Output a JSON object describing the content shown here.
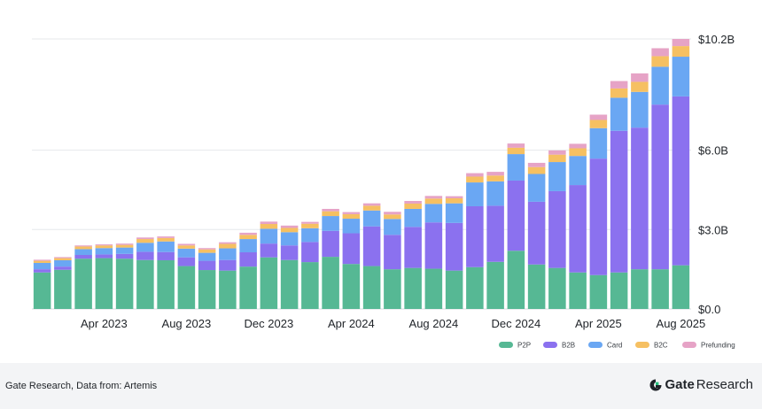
{
  "chart_data": {
    "type": "bar",
    "stacked": true,
    "categories": [
      "Jan 2023",
      "Feb 2023",
      "Mar 2023",
      "Apr 2023",
      "May 2023",
      "Jun 2023",
      "Jul 2023",
      "Aug 2023",
      "Sep 2023",
      "Oct 2023",
      "Nov 2023",
      "Dec 2023",
      "Jan 2024",
      "Feb 2024",
      "Mar 2024",
      "Apr 2024",
      "May 2024",
      "Jun 2024",
      "Jul 2024",
      "Aug 2024",
      "Sep 2024",
      "Oct 2024",
      "Nov 2024",
      "Dec 2024",
      "Jan 2025",
      "Feb 2025",
      "Mar 2025",
      "Apr 2025",
      "May 2025",
      "Jun 2025",
      "Jul 2025",
      "Aug 2025"
    ],
    "x_tick_labels": [
      {
        "index": 3,
        "label": "Apr 2023"
      },
      {
        "index": 7,
        "label": "Aug 2023"
      },
      {
        "index": 11,
        "label": "Dec 2023"
      },
      {
        "index": 15,
        "label": "Apr 2024"
      },
      {
        "index": 19,
        "label": "Aug 2024"
      },
      {
        "index": 23,
        "label": "Dec 2024"
      },
      {
        "index": 27,
        "label": "Apr 2025"
      },
      {
        "index": 31,
        "label": "Aug 2025"
      }
    ],
    "y_ticks": [
      {
        "value": 0,
        "label": "$0.0"
      },
      {
        "value": 3.0,
        "label": "$3.0B"
      },
      {
        "value": 6.0,
        "label": "$6.0B"
      },
      {
        "value": 10.2,
        "label": "$10.2B"
      }
    ],
    "y_axis_position": "right",
    "ylim": [
      0,
      10.2
    ],
    "grid": "horizontal",
    "legend_position": "bottom-right",
    "series": [
      {
        "name": "P2P",
        "color": "#56b894",
        "values": [
          1.38,
          1.48,
          1.9,
          1.92,
          1.9,
          1.85,
          1.84,
          1.62,
          1.47,
          1.45,
          1.6,
          1.95,
          1.85,
          1.77,
          1.97,
          1.7,
          1.62,
          1.5,
          1.55,
          1.52,
          1.45,
          1.58,
          1.78,
          2.2,
          1.68,
          1.55,
          1.38,
          1.28,
          1.38,
          1.5,
          1.5,
          1.65
        ]
      },
      {
        "name": "B2B",
        "color": "#8b71ef",
        "values": [
          0.12,
          0.12,
          0.14,
          0.14,
          0.18,
          0.31,
          0.31,
          0.33,
          0.35,
          0.4,
          0.54,
          0.52,
          0.55,
          0.76,
          0.98,
          1.16,
          1.5,
          1.3,
          1.55,
          1.75,
          1.8,
          2.3,
          2.12,
          2.65,
          2.37,
          2.9,
          3.3,
          4.4,
          5.35,
          5.35,
          6.22,
          6.38
        ]
      },
      {
        "name": "Card",
        "color": "#6aa7f3",
        "values": [
          0.24,
          0.24,
          0.22,
          0.24,
          0.24,
          0.34,
          0.4,
          0.33,
          0.3,
          0.44,
          0.5,
          0.56,
          0.5,
          0.52,
          0.56,
          0.55,
          0.6,
          0.6,
          0.68,
          0.7,
          0.74,
          0.9,
          0.92,
          1.0,
          1.05,
          1.1,
          1.1,
          1.15,
          1.25,
          1.35,
          1.43,
          1.5
        ]
      },
      {
        "name": "B2C",
        "color": "#f6c062",
        "values": [
          0.08,
          0.08,
          0.1,
          0.1,
          0.1,
          0.14,
          0.13,
          0.12,
          0.13,
          0.17,
          0.16,
          0.18,
          0.16,
          0.17,
          0.18,
          0.17,
          0.18,
          0.17,
          0.2,
          0.2,
          0.19,
          0.22,
          0.22,
          0.24,
          0.26,
          0.28,
          0.29,
          0.31,
          0.35,
          0.38,
          0.4,
          0.4
        ]
      },
      {
        "name": "Prefunding",
        "color": "#e6a3c6",
        "values": [
          0.04,
          0.04,
          0.04,
          0.04,
          0.05,
          0.06,
          0.06,
          0.06,
          0.05,
          0.06,
          0.08,
          0.09,
          0.09,
          0.07,
          0.09,
          0.08,
          0.09,
          0.1,
          0.1,
          0.1,
          0.08,
          0.13,
          0.14,
          0.16,
          0.16,
          0.16,
          0.17,
          0.2,
          0.28,
          0.32,
          0.3,
          0.27
        ]
      }
    ]
  },
  "footer": {
    "source": "Gate Research, Data from: Artemis",
    "brand_name": "Gate",
    "brand_suffix": " Research",
    "logo_icon": "gate-logo-icon"
  }
}
